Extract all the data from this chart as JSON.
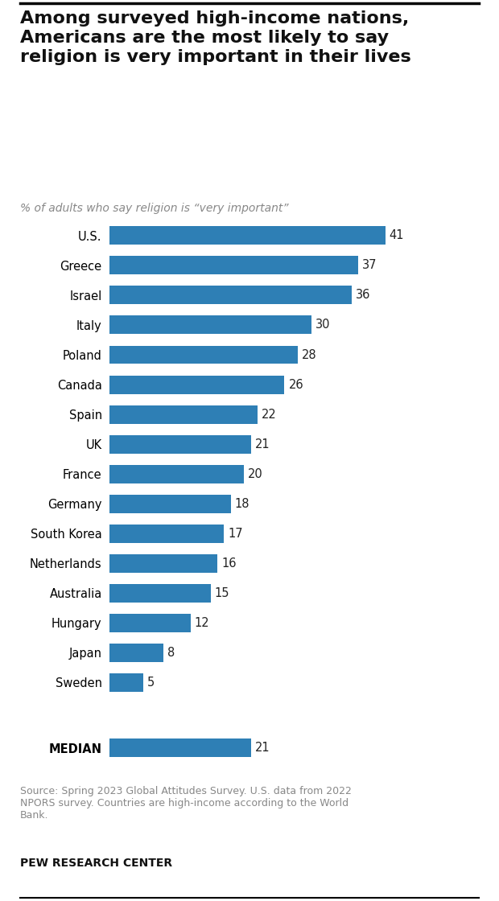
{
  "title": "Among surveyed high-income nations,\nAmericans are the most likely to say\nreligion is very important in their lives",
  "subtitle": "– % of adults who say religion is “very important”",
  "source": "Source: Spring 2023 Global Attitudes Survey. U.S. data from 2022\nNPORS survey. Countries are high-income according to the World\nBank.",
  "branding": "PEW RESEARCH CENTER",
  "categories": [
    "U.S.",
    "Greece",
    "Israel",
    "Italy",
    "Poland",
    "Canada",
    "Spain",
    "UK",
    "France",
    "Germany",
    "South Korea",
    "Netherlands",
    "Australia",
    "Hungary",
    "Japan",
    "Sweden"
  ],
  "values": [
    41,
    37,
    36,
    30,
    28,
    26,
    22,
    21,
    20,
    18,
    17,
    16,
    15,
    12,
    8,
    5
  ],
  "median_label": "MEDIAN",
  "median_value": 21,
  "bar_color": "#2e7fb5",
  "value_label_color": "#222222",
  "title_color": "#111111",
  "subtitle_color": "#888888",
  "source_color": "#888888",
  "branding_color": "#111111",
  "background_color": "#ffffff",
  "border_color": "#000000"
}
